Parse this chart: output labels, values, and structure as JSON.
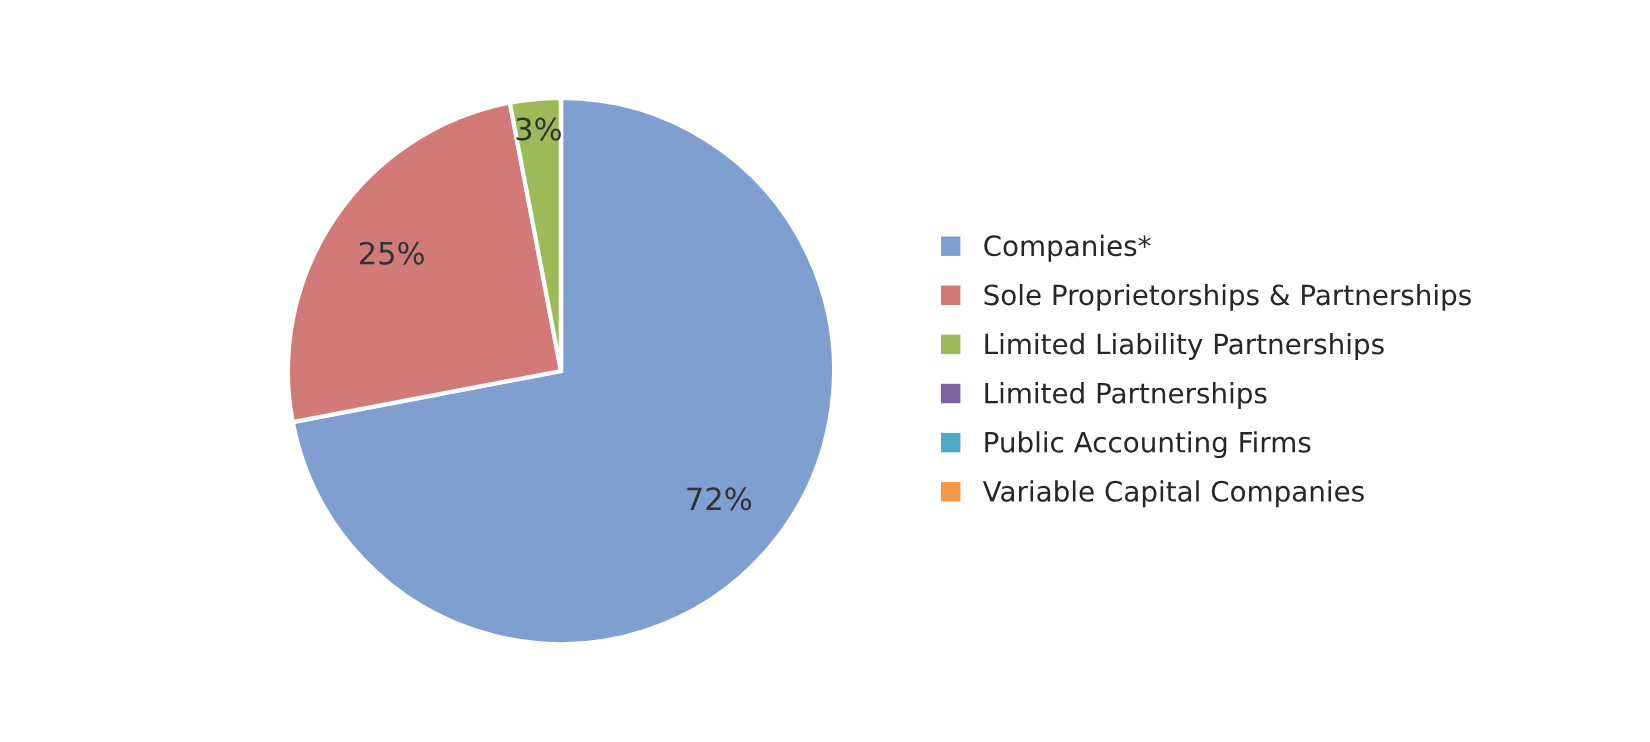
{
  "chart_data": {
    "type": "pie",
    "categories": [
      "Companies*",
      "Sole Proprietorships & Partnerships",
      "Limited Liability Partnerships",
      "Limited Partnerships",
      "Public Accounting Firms",
      "Variable Capital Companies"
    ],
    "values": [
      72,
      25,
      3,
      0,
      0,
      0
    ],
    "value_labels": [
      "72%",
      "25%",
      "3%",
      null,
      null,
      null
    ],
    "colors": [
      "#7f9fd0",
      "#d27a77",
      "#9bbb59",
      "#8064a2",
      "#4bacc6",
      "#f79646"
    ],
    "legend": "right"
  }
}
